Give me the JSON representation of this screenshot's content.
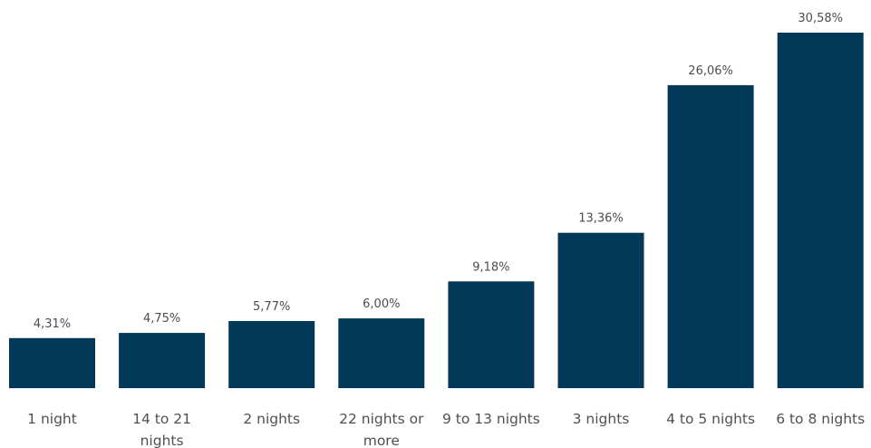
{
  "chart_data": {
    "type": "bar",
    "categories": [
      [
        "1 night"
      ],
      [
        "14 to 21",
        "nights"
      ],
      [
        "2 nights"
      ],
      [
        "22 nights or",
        "more"
      ],
      [
        "9 to 13 nights"
      ],
      [
        "3 nights"
      ],
      [
        "4 to 5 nights"
      ],
      [
        "6 to 8 nights"
      ]
    ],
    "values": [
      4.31,
      4.75,
      5.77,
      6.0,
      9.18,
      13.36,
      26.06,
      30.58
    ],
    "value_labels": [
      "4,31%",
      "4,75%",
      "5,77%",
      "6,00%",
      "9,18%",
      "13,36%",
      "26,06%",
      "30,58%"
    ],
    "ylim": [
      0,
      30.58
    ],
    "grid": false,
    "legend": "none",
    "colors": {
      "bar": "#023858",
      "value_text": "#4d4d4d",
      "category_text": "#505050"
    }
  }
}
